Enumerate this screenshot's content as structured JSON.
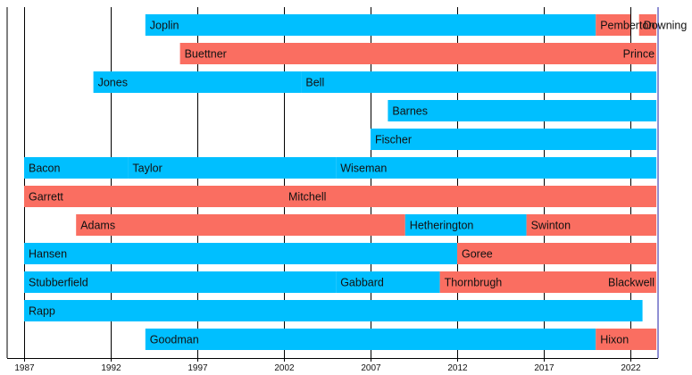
{
  "chart_data": {
    "type": "timeline",
    "title": "",
    "xlabel": "",
    "ylabel": "",
    "xlim": [
      1986,
      2023.5
    ],
    "grid": true,
    "tick_labels": [
      "1987",
      "1992",
      "1997",
      "2002",
      "2007",
      "2012",
      "2017",
      "2022"
    ],
    "colors": {
      "blue": "#00bfff",
      "red": "#fa6e61"
    },
    "rows": [
      {
        "segments": [
          {
            "label": "Joplin",
            "start": 1994,
            "end": 2020,
            "color": "blue"
          },
          {
            "label": "Pemberton",
            "start": 2020,
            "end": 2022,
            "color": "red"
          },
          {
            "label": "Downing",
            "start": 2022.5,
            "end": 2023.5,
            "color": "red"
          }
        ]
      },
      {
        "segments": [
          {
            "label": "Buettner",
            "start": 1996,
            "end": 2023.5,
            "color": "red"
          },
          {
            "label": "Prince",
            "start": 2023,
            "end": 2023.5,
            "color": "red",
            "label_align": "right"
          }
        ]
      },
      {
        "segments": [
          {
            "label": "Jones",
            "start": 1991,
            "end": 2003,
            "color": "blue"
          },
          {
            "label": "Bell",
            "start": 2003,
            "end": 2023.5,
            "color": "blue"
          }
        ]
      },
      {
        "segments": [
          {
            "label": "Barnes",
            "start": 2008,
            "end": 2023.5,
            "color": "blue"
          }
        ]
      },
      {
        "segments": [
          {
            "label": "Fischer",
            "start": 2007,
            "end": 2023.5,
            "color": "blue"
          }
        ]
      },
      {
        "segments": [
          {
            "label": "Bacon",
            "start": 1987,
            "end": 1993,
            "color": "blue"
          },
          {
            "label": "Taylor",
            "start": 1993,
            "end": 2005,
            "color": "blue"
          },
          {
            "label": "Wiseman",
            "start": 2005,
            "end": 2023.5,
            "color": "blue"
          }
        ]
      },
      {
        "segments": [
          {
            "label": "Garrett",
            "start": 1987,
            "end": 2002,
            "color": "red"
          },
          {
            "label": "Mitchell",
            "start": 2002,
            "end": 2023.5,
            "color": "red"
          }
        ]
      },
      {
        "segments": [
          {
            "label": "Adams",
            "start": 1990,
            "end": 2009,
            "color": "red"
          },
          {
            "label": "Hetherington",
            "start": 2009,
            "end": 2016,
            "color": "blue"
          },
          {
            "label": "Swinton",
            "start": 2016,
            "end": 2023.5,
            "color": "red"
          }
        ]
      },
      {
        "segments": [
          {
            "label": "Hansen",
            "start": 1987,
            "end": 2012,
            "color": "blue"
          },
          {
            "label": "Goree",
            "start": 2012,
            "end": 2023.5,
            "color": "red"
          }
        ]
      },
      {
        "segments": [
          {
            "label": "Stubberfield",
            "start": 1987,
            "end": 2005,
            "color": "blue"
          },
          {
            "label": "Gabbard",
            "start": 2005,
            "end": 2011,
            "color": "blue"
          },
          {
            "label": "Thornbrugh",
            "start": 2011,
            "end": 2023.5,
            "color": "red"
          },
          {
            "label": "Blackwell",
            "start": 2023,
            "end": 2023.5,
            "color": "red",
            "label_align": "right"
          }
        ]
      },
      {
        "segments": [
          {
            "label": "Rapp",
            "start": 1987,
            "end": 2022.7,
            "color": "blue"
          }
        ]
      },
      {
        "segments": [
          {
            "label": "Goodman",
            "start": 1994,
            "end": 2020,
            "color": "blue"
          },
          {
            "label": "Hixon",
            "start": 2020,
            "end": 2023.5,
            "color": "red"
          }
        ]
      }
    ]
  }
}
